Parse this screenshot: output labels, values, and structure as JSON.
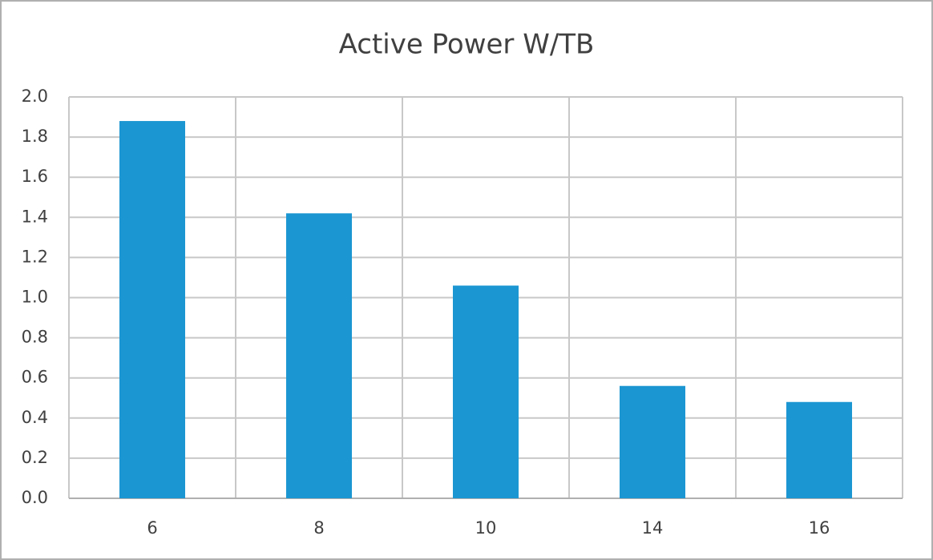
{
  "chart_data": {
    "type": "bar",
    "title": "Active Power W/TB",
    "categories": [
      "6",
      "8",
      "10",
      "14",
      "16"
    ],
    "values": [
      1.88,
      1.42,
      1.06,
      0.56,
      0.48
    ],
    "color": "#1b96d2",
    "ylim": [
      0,
      2
    ],
    "yticks": [
      {
        "value": 0,
        "label": "0.0"
      },
      0.2,
      0.4,
      0.6,
      0.8,
      {
        "value": 1,
        "label": "1.0"
      },
      1.2,
      1.4,
      1.6,
      1.8,
      {
        "value": 2,
        "label": "2.0"
      }
    ],
    "grid": true
  }
}
